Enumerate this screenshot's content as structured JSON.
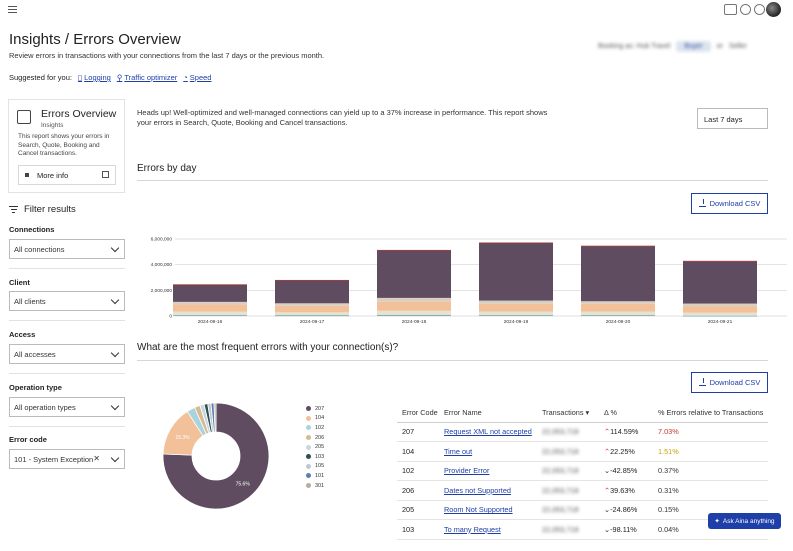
{
  "header": {
    "title": "Insights / Errors Overview",
    "subtitle": "Review errors in transactions with your connections from the last 7 days or the previous month.",
    "booking_label": "Booking as: Hub Travel",
    "booking_pill": "Buyer",
    "booking_or": "or",
    "booking_alt": "Seller"
  },
  "suggested": {
    "label": "Suggested for you:",
    "links": [
      "Logging",
      "Traffic optimizer",
      "Speed"
    ]
  },
  "info_card": {
    "title": "Errors Overview",
    "subtitle": "Insights",
    "description": "This report shows your errors in Search, Quote, Booking and Cancel transactions.",
    "more_info": "More info"
  },
  "filters": {
    "heading": "Filter results",
    "connections": {
      "label": "Connections",
      "value": "All connections"
    },
    "client": {
      "label": "Client",
      "value": "All clients"
    },
    "access": {
      "label": "Access",
      "value": "All accesses"
    },
    "operation_type": {
      "label": "Operation type",
      "value": "All operation types"
    },
    "error_code": {
      "label": "Error code",
      "value": "101 - System Exception"
    }
  },
  "main": {
    "heads_up": "Heads up! Well-optimized and well-managed connections can yield up to a 37% increase in performance. This report shows your errors in Search, Quote, Booking and Cancel transactions.",
    "date_range": "Last 7 days",
    "errors_by_day_title": "Errors by day",
    "frequent_errors_title": "What are the most frequent errors with your connection(s)?",
    "download_csv": "Download CSV"
  },
  "chart_data": [
    {
      "type": "bar",
      "stacked": true,
      "categories": [
        "2024-09-16",
        "2024-09-17",
        "2024-09-18",
        "2024-09-19",
        "2024-09-20",
        "2024-09-21"
      ],
      "ylim": [
        0,
        6000000
      ],
      "yticks": [
        "0",
        "2,000,000",
        "4,000,000",
        "6,000,000"
      ],
      "series": [
        {
          "color": "#2b9aa6",
          "values": [
            50000,
            40000,
            60000,
            50000,
            50000,
            20000
          ]
        },
        {
          "color": "#e9e0cf",
          "values": [
            300000,
            250000,
            350000,
            300000,
            300000,
            250000
          ]
        },
        {
          "color": "#f2c099",
          "values": [
            550000,
            500000,
            700000,
            600000,
            600000,
            500000
          ]
        },
        {
          "color": "#d9cfc0",
          "values": [
            200000,
            200000,
            300000,
            250000,
            200000,
            200000
          ]
        },
        {
          "color": "#5f4c60",
          "values": [
            1350000,
            1800000,
            3700000,
            4500000,
            4300000,
            3300000
          ]
        },
        {
          "color": "#c0392b",
          "values": [
            20000,
            20000,
            40000,
            30000,
            30000,
            30000
          ]
        }
      ],
      "grid": true
    },
    {
      "type": "pie",
      "donut": true,
      "labels": [
        "207",
        "104",
        "102",
        "206",
        "205",
        "103",
        "105",
        "101",
        "301"
      ],
      "values": [
        75.6,
        15.3,
        2.5,
        1.7,
        1.3,
        1.1,
        1.0,
        0.9,
        0.6
      ],
      "slice_labels": [
        "75.6%",
        "15.3%",
        "",
        "",
        "",
        "",
        "",
        "",
        ""
      ],
      "colors": [
        "#5f4c60",
        "#f2c099",
        "#a9d4dd",
        "#d9b98f",
        "#c7d7e0",
        "#2f4f52",
        "#bfc7d6",
        "#5b7fb5",
        "#b9ad9f"
      ]
    }
  ],
  "legend": [
    "207",
    "104",
    "102",
    "206",
    "205",
    "103",
    "105",
    "101",
    "301"
  ],
  "table": {
    "headers": [
      "Error Code",
      "Error Name",
      "Transactions",
      "Δ %",
      "% Errors relative to Transactions"
    ],
    "rows": [
      {
        "code": "207",
        "name": "Request XML not accepted",
        "transactions": "22,053,718",
        "delta": "114.59%",
        "dir": "up",
        "pct": "7.03%",
        "pct_style": "red"
      },
      {
        "code": "104",
        "name": "Time out",
        "transactions": "22,053,718",
        "delta": "22.25%",
        "dir": "up",
        "pct": "1.51%",
        "pct_style": "yel"
      },
      {
        "code": "102",
        "name": "Provider Error",
        "transactions": "22,053,718",
        "delta": "-42.85%",
        "dir": "down",
        "pct": "0.37%",
        "pct_style": "def"
      },
      {
        "code": "206",
        "name": "Dates not Supported",
        "transactions": "22,053,718",
        "delta": "39.63%",
        "dir": "up",
        "pct": "0.31%",
        "pct_style": "def"
      },
      {
        "code": "205",
        "name": "Room Not Supported",
        "transactions": "22,053,718",
        "delta": "-24.86%",
        "dir": "down",
        "pct": "0.15%",
        "pct_style": "def"
      },
      {
        "code": "103",
        "name": "To many Request",
        "transactions": "22,053,718",
        "delta": "-98.11%",
        "dir": "down",
        "pct": "0.04%",
        "pct_style": "def"
      }
    ]
  },
  "assistant": {
    "label": "Ask Aina anything"
  }
}
